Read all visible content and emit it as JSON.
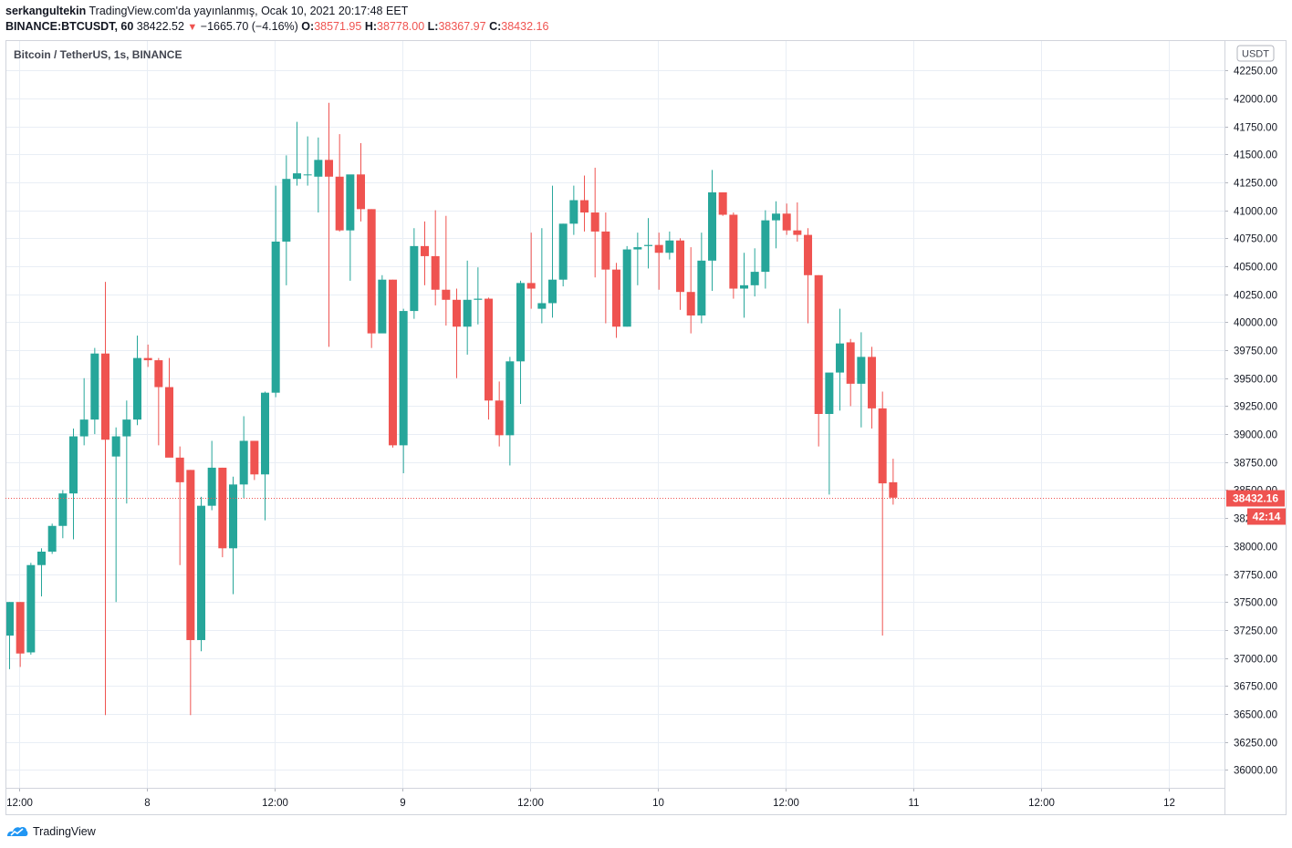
{
  "header": {
    "author": "serkangultekin",
    "published": "TradingView.com'da yayınlanmış, Ocak 10, 2021 20:17:48 EET",
    "symbol": "BINANCE:BTCUSDT, 60",
    "last": "38422.52",
    "change": "−1665.70 (−4.16%)",
    "o_label": "O:",
    "o": "38571.95",
    "h_label": "H:",
    "h": "38778.00",
    "l_label": "L:",
    "l": "38367.97",
    "c_label": "C:",
    "c": "38432.16"
  },
  "legend": "Bitcoin / TetherUS, 1s, BINANCE",
  "currency_badge": "USDT",
  "price_label": "38432.16",
  "countdown_label": "42:14",
  "footer": {
    "brand": "TradingView",
    "logo_icon": "tradingview-logo-icon"
  },
  "colors": {
    "up": "#26a69a",
    "down": "#ef5350",
    "grid": "#e9eef5"
  },
  "chart_data": {
    "type": "candlestick",
    "title": "Bitcoin / TetherUS, 1s, BINANCE",
    "x_ticks": [
      "12:00",
      "8",
      "12:00",
      "9",
      "12:00",
      "10",
      "12:00",
      "11",
      "12:00",
      "12"
    ],
    "y_ticks": [
      "42250.00",
      "42000.00",
      "41750.00",
      "41500.00",
      "41250.00",
      "41000.00",
      "40750.00",
      "40500.00",
      "40250.00",
      "40000.00",
      "39750.00",
      "39500.00",
      "39250.00",
      "39000.00",
      "38750.00",
      "38500.00",
      "38250.00",
      "38000.00",
      "37750.00",
      "37500.00",
      "37250.00",
      "37000.00",
      "36750.00",
      "36500.00",
      "36250.00",
      "36000.00"
    ],
    "ylim": [
      35840,
      42520
    ],
    "last_price": 38432.16,
    "candles": [
      {
        "o": 37200,
        "h": 37500,
        "l": 36900,
        "c": 37500
      },
      {
        "o": 37500,
        "h": 37500,
        "l": 36920,
        "c": 37040
      },
      {
        "o": 37050,
        "h": 37850,
        "l": 37030,
        "c": 37830
      },
      {
        "o": 37830,
        "h": 37980,
        "l": 37550,
        "c": 37950
      },
      {
        "o": 37950,
        "h": 38200,
        "l": 37930,
        "c": 38180
      },
      {
        "o": 38180,
        "h": 38500,
        "l": 38070,
        "c": 38470
      },
      {
        "o": 38470,
        "h": 39050,
        "l": 38060,
        "c": 38980
      },
      {
        "o": 38980,
        "h": 39500,
        "l": 38900,
        "c": 39130
      },
      {
        "o": 39130,
        "h": 39770,
        "l": 39000,
        "c": 39720
      },
      {
        "o": 39720,
        "h": 40360,
        "l": 36490,
        "c": 38950
      },
      {
        "o": 38800,
        "h": 39060,
        "l": 37500,
        "c": 38980
      },
      {
        "o": 38980,
        "h": 39300,
        "l": 38380,
        "c": 39130
      },
      {
        "o": 39130,
        "h": 39880,
        "l": 39080,
        "c": 39680
      },
      {
        "o": 39680,
        "h": 39800,
        "l": 39600,
        "c": 39660
      },
      {
        "o": 39660,
        "h": 39680,
        "l": 38900,
        "c": 39420
      },
      {
        "o": 39420,
        "h": 39680,
        "l": 38850,
        "c": 38790
      },
      {
        "o": 38790,
        "h": 38890,
        "l": 37830,
        "c": 38570
      },
      {
        "o": 38680,
        "h": 38680,
        "l": 36490,
        "c": 37160
      },
      {
        "o": 37160,
        "h": 38440,
        "l": 37060,
        "c": 38360
      },
      {
        "o": 38360,
        "h": 38940,
        "l": 38320,
        "c": 38700
      },
      {
        "o": 38700,
        "h": 38700,
        "l": 37900,
        "c": 37980
      },
      {
        "o": 37980,
        "h": 38620,
        "l": 37570,
        "c": 38550
      },
      {
        "o": 38550,
        "h": 39160,
        "l": 38430,
        "c": 38940
      },
      {
        "o": 38940,
        "h": 38940,
        "l": 38590,
        "c": 38640
      },
      {
        "o": 38640,
        "h": 39380,
        "l": 38230,
        "c": 39370
      },
      {
        "o": 39370,
        "h": 41220,
        "l": 39330,
        "c": 40720
      },
      {
        "o": 40720,
        "h": 41490,
        "l": 40330,
        "c": 41280
      },
      {
        "o": 41280,
        "h": 41790,
        "l": 41220,
        "c": 41330
      },
      {
        "o": 41320,
        "h": 41660,
        "l": 41220,
        "c": 41320
      },
      {
        "o": 41300,
        "h": 41650,
        "l": 40980,
        "c": 41450
      },
      {
        "o": 41450,
        "h": 41960,
        "l": 39780,
        "c": 41300
      },
      {
        "o": 41300,
        "h": 41680,
        "l": 40810,
        "c": 40820
      },
      {
        "o": 40820,
        "h": 41290,
        "l": 40370,
        "c": 41320
      },
      {
        "o": 41320,
        "h": 41600,
        "l": 40900,
        "c": 41010
      },
      {
        "o": 41010,
        "h": 41010,
        "l": 39770,
        "c": 39900
      },
      {
        "o": 39900,
        "h": 40420,
        "l": 39910,
        "c": 40380
      },
      {
        "o": 40380,
        "h": 40380,
        "l": 38880,
        "c": 38900
      },
      {
        "o": 38900,
        "h": 40120,
        "l": 38650,
        "c": 40100
      },
      {
        "o": 40100,
        "h": 40840,
        "l": 40030,
        "c": 40680
      },
      {
        "o": 40680,
        "h": 40900,
        "l": 40330,
        "c": 40590
      },
      {
        "o": 40590,
        "h": 41000,
        "l": 40150,
        "c": 40290
      },
      {
        "o": 40290,
        "h": 40950,
        "l": 39970,
        "c": 40200
      },
      {
        "o": 40200,
        "h": 40300,
        "l": 39500,
        "c": 39960
      },
      {
        "o": 39960,
        "h": 40550,
        "l": 39710,
        "c": 40200
      },
      {
        "o": 40200,
        "h": 40490,
        "l": 39980,
        "c": 40210
      },
      {
        "o": 40210,
        "h": 40220,
        "l": 39130,
        "c": 39300
      },
      {
        "o": 39300,
        "h": 39470,
        "l": 38890,
        "c": 38990
      },
      {
        "o": 38990,
        "h": 39690,
        "l": 38720,
        "c": 39650
      },
      {
        "o": 39650,
        "h": 40370,
        "l": 39270,
        "c": 40350
      },
      {
        "o": 40350,
        "h": 40800,
        "l": 40120,
        "c": 40300
      },
      {
        "o": 40120,
        "h": 40840,
        "l": 39990,
        "c": 40170
      },
      {
        "o": 40170,
        "h": 41220,
        "l": 40040,
        "c": 40380
      },
      {
        "o": 40380,
        "h": 40880,
        "l": 40320,
        "c": 40880
      },
      {
        "o": 40880,
        "h": 41220,
        "l": 40780,
        "c": 41090
      },
      {
        "o": 41090,
        "h": 41310,
        "l": 40810,
        "c": 40980
      },
      {
        "o": 40980,
        "h": 41380,
        "l": 40400,
        "c": 40810
      },
      {
        "o": 40810,
        "h": 40980,
        "l": 39990,
        "c": 40470
      },
      {
        "o": 40470,
        "h": 40530,
        "l": 39860,
        "c": 39960
      },
      {
        "o": 39960,
        "h": 40680,
        "l": 39960,
        "c": 40650
      },
      {
        "o": 40650,
        "h": 40800,
        "l": 40330,
        "c": 40670
      },
      {
        "o": 40680,
        "h": 40930,
        "l": 40480,
        "c": 40690
      },
      {
        "o": 40690,
        "h": 40800,
        "l": 40290,
        "c": 40620
      },
      {
        "o": 40620,
        "h": 40810,
        "l": 40560,
        "c": 40730
      },
      {
        "o": 40730,
        "h": 40750,
        "l": 40110,
        "c": 40270
      },
      {
        "o": 40270,
        "h": 40670,
        "l": 39900,
        "c": 40060
      },
      {
        "o": 40060,
        "h": 40800,
        "l": 39990,
        "c": 40550
      },
      {
        "o": 40550,
        "h": 41360,
        "l": 40280,
        "c": 41160
      },
      {
        "o": 41160,
        "h": 41160,
        "l": 40950,
        "c": 40960
      },
      {
        "o": 40960,
        "h": 40980,
        "l": 40210,
        "c": 40300
      },
      {
        "o": 40300,
        "h": 40620,
        "l": 40040,
        "c": 40330
      },
      {
        "o": 40330,
        "h": 40660,
        "l": 40230,
        "c": 40450
      },
      {
        "o": 40450,
        "h": 41000,
        "l": 40300,
        "c": 40910
      },
      {
        "o": 40910,
        "h": 41080,
        "l": 40660,
        "c": 40970
      },
      {
        "o": 40970,
        "h": 41060,
        "l": 40780,
        "c": 40820
      },
      {
        "o": 40820,
        "h": 41070,
        "l": 40720,
        "c": 40780
      },
      {
        "o": 40780,
        "h": 40840,
        "l": 39990,
        "c": 40420
      },
      {
        "o": 40420,
        "h": 40420,
        "l": 38890,
        "c": 39180
      },
      {
        "o": 39180,
        "h": 39540,
        "l": 38460,
        "c": 39550
      },
      {
        "o": 39550,
        "h": 40120,
        "l": 39210,
        "c": 39810
      },
      {
        "o": 39820,
        "h": 39850,
        "l": 39250,
        "c": 39450
      },
      {
        "o": 39450,
        "h": 39910,
        "l": 39060,
        "c": 39690
      },
      {
        "o": 39690,
        "h": 39780,
        "l": 39050,
        "c": 39230
      },
      {
        "o": 39230,
        "h": 39380,
        "l": 37200,
        "c": 38560
      },
      {
        "o": 38570,
        "h": 38780,
        "l": 38370,
        "c": 38432.16
      }
    ]
  }
}
